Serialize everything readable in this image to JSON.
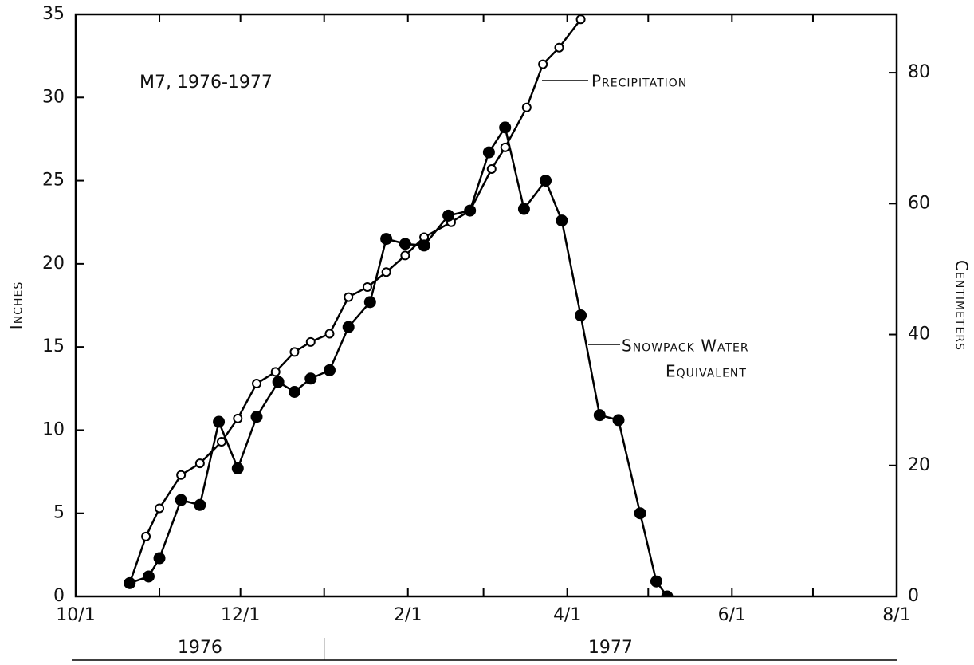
{
  "chart_data": {
    "type": "line",
    "title": "M7, 1976-1977",
    "y_label": "Inches",
    "y2_label": "Centimeters",
    "xlim": [
      "1976-10-01",
      "1977-08-01"
    ],
    "xticks": [
      {
        "value": "1976-10-01",
        "label": "10/1"
      },
      {
        "value": "1976-12-01",
        "label": "12/1"
      },
      {
        "value": "1977-02-01",
        "label": "2/1"
      },
      {
        "value": "1977-04-01",
        "label": "4/1"
      },
      {
        "value": "1977-06-01",
        "label": "6/1"
      },
      {
        "value": "1977-08-01",
        "label": "8/1"
      }
    ],
    "xminorticks": [
      "1976-11-01",
      "1977-01-01",
      "1977-03-01",
      "1977-05-01",
      "1977-07-01"
    ],
    "years": [
      {
        "label": "1976",
        "from": "1976-10-01",
        "to": "1977-01-01"
      },
      {
        "label": "1977",
        "from": "1977-01-01",
        "to": "1977-08-01"
      }
    ],
    "ylim": [
      0,
      35
    ],
    "yticks": [
      0,
      5,
      10,
      15,
      20,
      25,
      30,
      35
    ],
    "y2lim": [
      0,
      88.9
    ],
    "y2ticks": [
      0,
      20,
      40,
      60,
      80
    ],
    "series": [
      {
        "name": "Precipitation",
        "color": "#000000",
        "marker": "open",
        "x": [
          "1976-10-21",
          "1976-10-27",
          "1976-11-01",
          "1976-11-09",
          "1976-11-16",
          "1976-11-24",
          "1976-11-30",
          "1976-12-07",
          "1976-12-14",
          "1976-12-21",
          "1976-12-27",
          "1977-01-03",
          "1977-01-10",
          "1977-01-17",
          "1977-01-24",
          "1977-01-31",
          "1977-02-07",
          "1977-02-17",
          "1977-02-24",
          "1977-03-04",
          "1977-03-09",
          "1977-03-17",
          "1977-03-23",
          "1977-03-29",
          "1977-04-06"
        ],
        "values": [
          0.8,
          3.6,
          5.3,
          7.3,
          8.0,
          9.3,
          10.7,
          12.8,
          13.5,
          14.7,
          15.3,
          15.8,
          18.0,
          18.6,
          19.5,
          20.5,
          21.6,
          22.5,
          23.2,
          25.7,
          27.0,
          29.4,
          32.0,
          33.0,
          34.7
        ]
      },
      {
        "name": "Snowpack Water Equivalent",
        "label_lines": [
          "Snowpack Water",
          "Equivalent"
        ],
        "color": "#000000",
        "marker": "filled",
        "x": [
          "1976-10-21",
          "1976-10-28",
          "1976-11-01",
          "1976-11-09",
          "1976-11-16",
          "1976-11-23",
          "1976-11-30",
          "1976-12-07",
          "1976-12-15",
          "1976-12-21",
          "1976-12-27",
          "1977-01-03",
          "1977-01-10",
          "1977-01-18",
          "1977-01-24",
          "1977-01-31",
          "1977-02-07",
          "1977-02-16",
          "1977-02-24",
          "1977-03-03",
          "1977-03-09",
          "1977-03-16",
          "1977-03-24",
          "1977-03-30",
          "1977-04-06",
          "1977-04-13",
          "1977-04-20",
          "1977-04-28",
          "1977-05-04",
          "1977-05-08"
        ],
        "values": [
          0.8,
          1.2,
          2.3,
          5.8,
          5.5,
          10.5,
          7.7,
          10.8,
          12.9,
          12.3,
          13.1,
          13.6,
          16.2,
          17.7,
          21.5,
          21.2,
          21.1,
          22.9,
          23.2,
          26.7,
          28.2,
          23.3,
          25.0,
          22.6,
          16.9,
          10.9,
          10.6,
          5.0,
          0.9,
          0
        ]
      }
    ]
  }
}
